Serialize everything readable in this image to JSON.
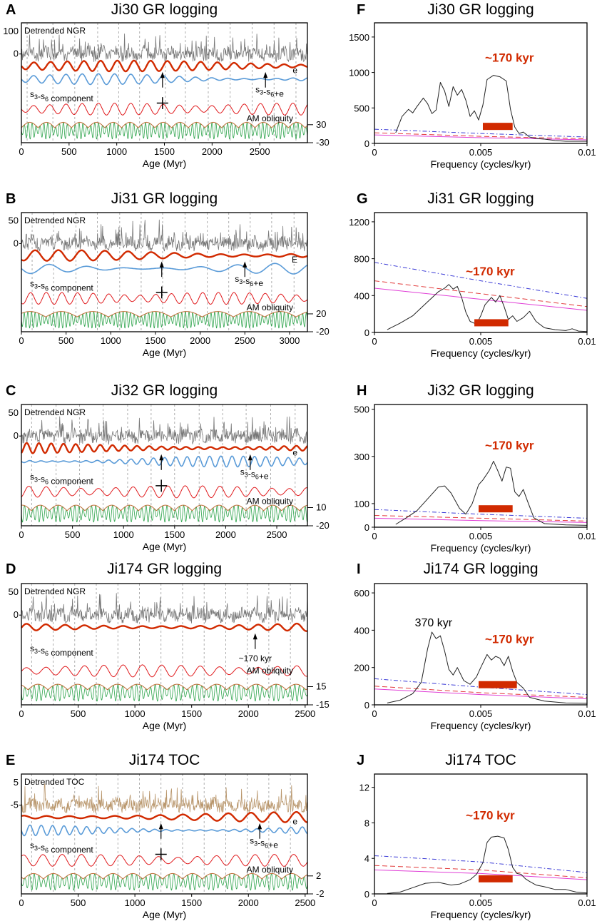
{
  "colors": {
    "ngr": "#777777",
    "toc": "#b8956a",
    "bold_red": "#d12a00",
    "blue": "#5a9bd8",
    "thin_red": "#e0181b",
    "green": "#2ca34a",
    "envelope": "#c0703a",
    "spectrum": "#222222",
    "conf_dashdot": "#3b3bd6",
    "conf_dash": "#e23b3b",
    "conf_solid": "#e03ed6",
    "bar": "#d12a00",
    "peak_label": "#d12a00"
  },
  "chart_data": [
    {
      "type": "line",
      "panel": "A",
      "title": "Ji30 GR logging",
      "xlabel": "Age (Myr)",
      "xlim": [
        0,
        3000
      ],
      "xticks": [
        0,
        500,
        1000,
        1500,
        2000,
        2500
      ],
      "left_ticks": [
        "100",
        "0"
      ],
      "right_ticks": [
        "30",
        "-30"
      ],
      "gridlines": [
        60,
        330,
        560,
        800,
        1020,
        1240,
        1510,
        1720,
        1960,
        2190,
        2420,
        2650,
        2880
      ],
      "series_labels": [
        "Detrended NGR",
        "s3-s6+e",
        "e",
        "s3-s6 component",
        "AM obliquity"
      ],
      "cross_x": 1480,
      "arrow_x": 1480,
      "arrow_label": {
        "text": "s3-s6+e",
        "x": 2560
      },
      "primary": "ngr",
      "bold_period": 175,
      "blue_period": 170,
      "red_period": 170,
      "green_period": 41,
      "green_mod_period": 175,
      "letter_e": true
    },
    {
      "type": "line",
      "panel": "B",
      "title": "Ji31 GR logging",
      "xlabel": "Age (Myr)",
      "xlim": [
        0,
        3200
      ],
      "xticks": [
        0,
        500,
        1000,
        1500,
        2000,
        2500,
        3000
      ],
      "left_ticks": [
        "50",
        "0"
      ],
      "right_ticks": [
        "20",
        "-20"
      ],
      "gridlines": [
        120,
        360,
        610,
        850,
        1100,
        1340,
        1580,
        1830,
        2080,
        2320,
        2560,
        2800,
        3050
      ],
      "series_labels": [
        "Detrended NGR",
        "s3-s6+e",
        "E",
        "s3-s6 component",
        "AM obliquity"
      ],
      "cross_x": 1570,
      "arrow_x": 1570,
      "arrow_label": {
        "text": "s3-s6+e",
        "x": 2500
      },
      "primary": "ngr",
      "bold_period": 260,
      "blue_period": 420,
      "red_period": 175,
      "green_period": 41,
      "green_mod_period": 350,
      "letter_e": true
    },
    {
      "type": "line",
      "panel": "C",
      "title": "Ji32 GR logging",
      "xlabel": "Age (Myr)",
      "xlim": [
        0,
        2800
      ],
      "xticks": [
        0,
        500,
        1000,
        1500,
        2000,
        2500
      ],
      "left_ticks": [
        "50",
        "0"
      ],
      "right_ticks": [
        "10",
        "-20"
      ],
      "gridlines": [
        100,
        340,
        570,
        800,
        1040,
        1270,
        1500,
        1740,
        1970,
        2200,
        2440,
        2680
      ],
      "series_labels": [
        "Detrended NGR",
        "s3-s6+e",
        "e",
        "s3-s6 component",
        "AM obliquity"
      ],
      "cross_x": 1370,
      "arrow_x": 1370,
      "arrow_label": {
        "text": "s3-s6+e",
        "x": 2240
      },
      "primary": "ngr",
      "bold_period": 120,
      "blue_period": 110,
      "red_period": 170,
      "green_period": 41,
      "green_mod_period": 175,
      "letter_e": true
    },
    {
      "type": "line",
      "panel": "D",
      "title": "Ji174 GR logging",
      "xlabel": "Age (Myr)",
      "xlim": [
        0,
        2520
      ],
      "xticks": [
        0,
        500,
        1000,
        1500,
        2000,
        2500
      ],
      "left_ticks": [
        "50",
        "0"
      ],
      "right_ticks": [
        "15",
        "-15"
      ],
      "gridlines": [
        90,
        280,
        470,
        660,
        850,
        1040,
        1230,
        1420,
        1610,
        1800,
        1990,
        2180,
        2370
      ],
      "series_labels": [
        "Detrended NGR",
        "~170 kyr",
        "s3-s6 component",
        "AM obliquity"
      ],
      "cross_x": null,
      "arrow_x": 2060,
      "arrow_label": {
        "text": "~170 kyr",
        "x": 2060
      },
      "primary": "ngr",
      "bold_period": 170,
      "blue_period": 0,
      "red_period": 170,
      "green_period": 41,
      "green_mod_period": 175,
      "letter_e": false
    },
    {
      "type": "line",
      "panel": "E",
      "title": "Ji174 TOC",
      "xlabel": "Age (Myr)",
      "xlim": [
        0,
        2520
      ],
      "xticks": [
        0,
        500,
        1000,
        1500,
        2000,
        2500
      ],
      "left_ticks": [
        "5",
        "-5"
      ],
      "right_ticks": [
        "2",
        "-2"
      ],
      "gridlines": [
        90,
        280,
        470,
        660,
        850,
        1040,
        1230,
        1420,
        1610,
        1800,
        1990,
        2180,
        2370
      ],
      "series_labels": [
        "Detrended TOC",
        "s3-s6+e",
        "e",
        "s3-s6 component",
        "AM obliquity"
      ],
      "cross_x": 1230,
      "arrow_x": 1230,
      "arrow_label": {
        "text": "s3-s6+e",
        "x": 2100
      },
      "primary": "toc",
      "bold_period": 200,
      "blue_period": 100,
      "red_period": 170,
      "green_period": 41,
      "green_mod_period": 175,
      "letter_e": true
    },
    {
      "type": "line",
      "panel": "F",
      "title": "Ji30 GR logging",
      "xlabel": "Frequency (cycles/kyr)",
      "xlim": [
        0,
        0.01
      ],
      "ylim": [
        0,
        1700
      ],
      "xticks": [
        0,
        0.005,
        0.01
      ],
      "xtick_labels": [
        "0",
        "0.005",
        "0.01"
      ],
      "yticks": [
        0,
        500,
        1000,
        1500
      ],
      "peak_label": "~170 kyr",
      "peak_label_at": [
        0.0052,
        1150
      ],
      "bar": {
        "f0": 0.0051,
        "f1": 0.0065,
        "y": 240
      },
      "spectrum": [
        [
          0.001,
          150
        ],
        [
          0.0013,
          380
        ],
        [
          0.0016,
          480
        ],
        [
          0.0018,
          430
        ],
        [
          0.002,
          520
        ],
        [
          0.0023,
          640
        ],
        [
          0.0025,
          560
        ],
        [
          0.0027,
          420
        ],
        [
          0.0029,
          470
        ],
        [
          0.0031,
          860
        ],
        [
          0.0033,
          740
        ],
        [
          0.0035,
          520
        ],
        [
          0.0037,
          800
        ],
        [
          0.0039,
          680
        ],
        [
          0.0041,
          760
        ],
        [
          0.0043,
          610
        ],
        [
          0.0045,
          380
        ],
        [
          0.0047,
          460
        ],
        [
          0.0049,
          330
        ],
        [
          0.0051,
          540
        ],
        [
          0.0053,
          900
        ],
        [
          0.0056,
          960
        ],
        [
          0.0059,
          940
        ],
        [
          0.0062,
          880
        ],
        [
          0.0064,
          480
        ],
        [
          0.0066,
          230
        ],
        [
          0.0068,
          140
        ],
        [
          0.007,
          160
        ],
        [
          0.0073,
          90
        ],
        [
          0.0076,
          70
        ],
        [
          0.008,
          60
        ],
        [
          0.0085,
          40
        ],
        [
          0.009,
          30
        ],
        [
          0.0095,
          30
        ],
        [
          0.01,
          30
        ]
      ],
      "conf_dashdot": [
        [
          0,
          200
        ],
        [
          0.005,
          140
        ],
        [
          0.01,
          90
        ]
      ],
      "conf_dash": [
        [
          0,
          150
        ],
        [
          0.005,
          100
        ],
        [
          0.01,
          65
        ]
      ],
      "conf_solid": [
        [
          0,
          120
        ],
        [
          0.005,
          80
        ],
        [
          0.01,
          50
        ]
      ]
    },
    {
      "type": "line",
      "panel": "G",
      "title": "Ji31 GR logging",
      "xlabel": "Frequency (cycles/kyr)",
      "xlim": [
        0,
        0.01
      ],
      "ylim": [
        0,
        1300
      ],
      "xticks": [
        0,
        0.005,
        0.01
      ],
      "xtick_labels": [
        "0",
        "0.005",
        "0.01"
      ],
      "yticks": [
        0,
        400,
        800,
        1200
      ],
      "peak_label": "~170 kyr",
      "peak_label_at": [
        0.0043,
        620
      ],
      "bar": {
        "f0": 0.0047,
        "f1": 0.0063,
        "y": 105
      },
      "spectrum": [
        [
          0.0006,
          30
        ],
        [
          0.0012,
          100
        ],
        [
          0.0018,
          180
        ],
        [
          0.0024,
          310
        ],
        [
          0.003,
          440
        ],
        [
          0.0033,
          480
        ],
        [
          0.0035,
          520
        ],
        [
          0.0037,
          470
        ],
        [
          0.0039,
          500
        ],
        [
          0.0041,
          380
        ],
        [
          0.0043,
          220
        ],
        [
          0.0045,
          120
        ],
        [
          0.0048,
          90
        ],
        [
          0.005,
          180
        ],
        [
          0.0052,
          300
        ],
        [
          0.0055,
          380
        ],
        [
          0.0057,
          330
        ],
        [
          0.0059,
          400
        ],
        [
          0.0061,
          280
        ],
        [
          0.0063,
          140
        ],
        [
          0.0065,
          180
        ],
        [
          0.0067,
          120
        ],
        [
          0.007,
          160
        ],
        [
          0.0073,
          230
        ],
        [
          0.0076,
          120
        ],
        [
          0.008,
          50
        ],
        [
          0.0085,
          30
        ],
        [
          0.009,
          20
        ],
        [
          0.0093,
          40
        ],
        [
          0.0096,
          15
        ],
        [
          0.01,
          10
        ]
      ],
      "conf_dashdot": [
        [
          0,
          760
        ],
        [
          0.005,
          560
        ],
        [
          0.01,
          370
        ]
      ],
      "conf_dash": [
        [
          0,
          560
        ],
        [
          0.005,
          420
        ],
        [
          0.01,
          280
        ]
      ],
      "conf_solid": [
        [
          0,
          480
        ],
        [
          0.005,
          360
        ],
        [
          0.01,
          240
        ]
      ]
    },
    {
      "type": "line",
      "panel": "H",
      "title": "Ji32 GR logging",
      "xlabel": "Frequency (cycles/kyr)",
      "xlim": [
        0,
        0.01
      ],
      "ylim": [
        0,
        520
      ],
      "xticks": [
        0,
        0.005,
        0.01
      ],
      "xtick_labels": [
        "0",
        "0.005",
        "0.01"
      ],
      "yticks": [
        0,
        100,
        300,
        500
      ],
      "peak_label": "~170 kyr",
      "peak_label_at": [
        0.0052,
        330
      ],
      "bar": {
        "f0": 0.0049,
        "f1": 0.0065,
        "y": 78
      },
      "spectrum": [
        [
          0.001,
          12
        ],
        [
          0.0015,
          40
        ],
        [
          0.002,
          70
        ],
        [
          0.0025,
          120
        ],
        [
          0.003,
          170
        ],
        [
          0.0033,
          175
        ],
        [
          0.0036,
          145
        ],
        [
          0.004,
          80
        ],
        [
          0.0043,
          55
        ],
        [
          0.0046,
          100
        ],
        [
          0.0049,
          180
        ],
        [
          0.0051,
          200
        ],
        [
          0.0054,
          240
        ],
        [
          0.0056,
          280
        ],
        [
          0.0058,
          240
        ],
        [
          0.006,
          195
        ],
        [
          0.0062,
          255
        ],
        [
          0.0064,
          250
        ],
        [
          0.0066,
          150
        ],
        [
          0.0068,
          130
        ],
        [
          0.007,
          160
        ],
        [
          0.0072,
          110
        ],
        [
          0.0075,
          40
        ],
        [
          0.008,
          15
        ],
        [
          0.009,
          10
        ],
        [
          0.01,
          8
        ]
      ],
      "conf_dashdot": [
        [
          0,
          75
        ],
        [
          0.005,
          55
        ],
        [
          0.01,
          38
        ]
      ],
      "conf_dash": [
        [
          0,
          50
        ],
        [
          0.005,
          38
        ],
        [
          0.01,
          26
        ]
      ],
      "conf_solid": [
        [
          0,
          38
        ],
        [
          0.005,
          28
        ],
        [
          0.01,
          20
        ]
      ]
    },
    {
      "type": "line",
      "panel": "I",
      "title": "Ji174 GR logging",
      "xlabel": "Frequency (cycles/kyr)",
      "xlim": [
        0,
        0.01
      ],
      "ylim": [
        0,
        650
      ],
      "xticks": [
        0,
        0.005,
        0.01
      ],
      "xtick_labels": [
        "0",
        "0.005",
        "0.01"
      ],
      "yticks": [
        0,
        200,
        400,
        600
      ],
      "peak_label": "~170 kyr",
      "peak_label_at": [
        0.0052,
        330
      ],
      "peak2_label": "370 kyr",
      "peak2_at": [
        0.0019,
        420
      ],
      "bar": {
        "f0": 0.0049,
        "f1": 0.0067,
        "y": 108
      },
      "spectrum": [
        [
          0.0006,
          10
        ],
        [
          0.0012,
          25
        ],
        [
          0.0018,
          60
        ],
        [
          0.0022,
          120
        ],
        [
          0.0025,
          300
        ],
        [
          0.0027,
          390
        ],
        [
          0.0029,
          355
        ],
        [
          0.0031,
          370
        ],
        [
          0.0033,
          290
        ],
        [
          0.0035,
          190
        ],
        [
          0.0037,
          160
        ],
        [
          0.0039,
          200
        ],
        [
          0.0042,
          130
        ],
        [
          0.0045,
          110
        ],
        [
          0.0048,
          150
        ],
        [
          0.005,
          200
        ],
        [
          0.0053,
          270
        ],
        [
          0.0055,
          240
        ],
        [
          0.0057,
          260
        ],
        [
          0.0059,
          250
        ],
        [
          0.0061,
          210
        ],
        [
          0.0063,
          260
        ],
        [
          0.0065,
          180
        ],
        [
          0.0067,
          120
        ],
        [
          0.007,
          90
        ],
        [
          0.0073,
          40
        ],
        [
          0.008,
          20
        ],
        [
          0.009,
          10
        ],
        [
          0.01,
          8
        ]
      ],
      "conf_dashdot": [
        [
          0,
          140
        ],
        [
          0.005,
          95
        ],
        [
          0.01,
          55
        ]
      ],
      "conf_dash": [
        [
          0,
          100
        ],
        [
          0.005,
          65
        ],
        [
          0.01,
          40
        ]
      ],
      "conf_solid": [
        [
          0,
          85
        ],
        [
          0.005,
          55
        ],
        [
          0.01,
          32
        ]
      ]
    },
    {
      "type": "line",
      "panel": "J",
      "title": "Ji174 TOC",
      "xlabel": "Frequency (cycles/kyr)",
      "xlim": [
        0,
        0.01
      ],
      "ylim": [
        0,
        13.5
      ],
      "xticks": [
        0,
        0.005,
        0.01
      ],
      "xtick_labels": [
        "0",
        "0.005",
        "0.01"
      ],
      "yticks": [
        0,
        4,
        8,
        12
      ],
      "peak_label": "~170 kyr",
      "peak_label_at": [
        0.0043,
        8.4
      ],
      "bar": {
        "f0": 0.0049,
        "f1": 0.0065,
        "y": 1.7
      },
      "spectrum": [
        [
          0.0006,
          0.05
        ],
        [
          0.0012,
          0.2
        ],
        [
          0.0018,
          0.7
        ],
        [
          0.0024,
          1.2
        ],
        [
          0.003,
          1.3
        ],
        [
          0.0036,
          1.0
        ],
        [
          0.004,
          1.1
        ],
        [
          0.0045,
          1.6
        ],
        [
          0.0048,
          2.2
        ],
        [
          0.0051,
          3.5
        ],
        [
          0.0053,
          5.8
        ],
        [
          0.0055,
          6.4
        ],
        [
          0.0058,
          6.5
        ],
        [
          0.0061,
          6.3
        ],
        [
          0.0063,
          5.0
        ],
        [
          0.0065,
          3.0
        ],
        [
          0.0067,
          2.3
        ],
        [
          0.0069,
          2.2
        ],
        [
          0.0071,
          1.7
        ],
        [
          0.0073,
          1.4
        ],
        [
          0.0076,
          1.0
        ],
        [
          0.008,
          0.8
        ],
        [
          0.0085,
          0.5
        ],
        [
          0.009,
          0.5
        ],
        [
          0.0095,
          0.2
        ],
        [
          0.01,
          0.1
        ]
      ],
      "conf_dashdot": [
        [
          0,
          4.3
        ],
        [
          0.005,
          3.6
        ],
        [
          0.01,
          2.4
        ]
      ],
      "conf_dash": [
        [
          0,
          3.2
        ],
        [
          0.005,
          2.7
        ],
        [
          0.01,
          1.8
        ]
      ],
      "conf_solid": [
        [
          0,
          2.7
        ],
        [
          0.005,
          2.3
        ],
        [
          0.01,
          1.6
        ]
      ]
    }
  ]
}
